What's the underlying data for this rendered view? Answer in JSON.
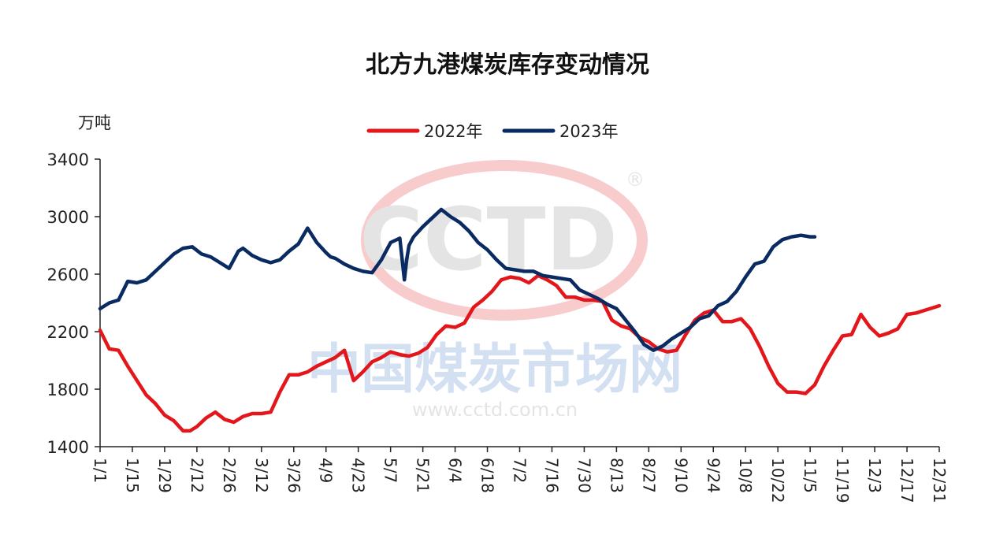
{
  "chart_data": {
    "type": "line",
    "title": "北方九港煤炭库存变动情况",
    "ylabel": "万吨",
    "ylim": [
      1400,
      3400
    ],
    "yticks": [
      1400,
      1800,
      2200,
      2600,
      3000,
      3400
    ],
    "x_tick_labels": [
      "1/1",
      "1/15",
      "1/29",
      "2/12",
      "2/26",
      "3/12",
      "3/26",
      "4/9",
      "4/23",
      "5/7",
      "5/21",
      "6/4",
      "6/18",
      "7/2",
      "7/16",
      "7/30",
      "8/13",
      "8/27",
      "9/10",
      "9/24",
      "10/8",
      "10/22",
      "11/5",
      "11/19",
      "12/3",
      "12/17",
      "12/31"
    ],
    "x_unit": "day of year",
    "legend_position": "top",
    "grid": false,
    "series": [
      {
        "name": "2022年",
        "color": "#e3161b",
        "x": [
          1,
          5,
          9,
          13,
          17,
          21,
          25,
          29,
          33,
          37,
          40,
          43,
          47,
          51,
          55,
          59,
          63,
          67,
          71,
          75,
          79,
          83,
          87,
          91,
          95,
          99,
          103,
          107,
          111,
          115,
          119,
          123,
          127,
          131,
          135,
          139,
          143,
          147,
          151,
          155,
          159,
          163,
          167,
          171,
          175,
          179,
          183,
          187,
          191,
          195,
          199,
          203,
          207,
          211,
          215,
          219,
          223,
          227,
          231,
          235,
          239,
          243,
          247,
          251,
          255,
          259,
          263,
          267,
          271,
          275,
          279,
          283,
          287,
          291,
          295,
          299,
          303,
          307,
          311,
          315,
          319,
          323,
          327,
          331,
          335,
          339,
          343,
          347,
          351,
          355,
          359,
          363,
          365
        ],
        "y": [
          2210,
          2080,
          2070,
          1960,
          1860,
          1760,
          1700,
          1620,
          1580,
          1510,
          1510,
          1540,
          1600,
          1640,
          1590,
          1570,
          1610,
          1630,
          1630,
          1640,
          1780,
          1900,
          1900,
          1920,
          1960,
          1990,
          2020,
          2070,
          1860,
          1920,
          1990,
          2020,
          2060,
          2040,
          2030,
          2050,
          2090,
          2180,
          2240,
          2230,
          2260,
          2370,
          2420,
          2480,
          2560,
          2580,
          2570,
          2540,
          2590,
          2560,
          2520,
          2440,
          2440,
          2420,
          2420,
          2410,
          2280,
          2240,
          2220,
          2160,
          2130,
          2080,
          2060,
          2070,
          2180,
          2280,
          2330,
          2350,
          2270,
          2270,
          2290,
          2220,
          2100,
          1960,
          1840,
          1780,
          1780,
          1770,
          1830,
          1960,
          2070,
          2170,
          2180,
          2320,
          2230,
          2170,
          2190,
          2220,
          2320,
          2330,
          2350,
          2370,
          2380
        ]
      },
      {
        "name": "2023年",
        "color": "#0a2a62",
        "x": [
          1,
          5,
          9,
          13,
          17,
          21,
          25,
          29,
          33,
          37,
          41,
          45,
          49,
          53,
          57,
          61,
          63,
          67,
          71,
          75,
          79,
          83,
          87,
          91,
          95,
          99,
          101,
          103,
          107,
          111,
          115,
          119,
          123,
          127,
          131,
          133,
          134,
          135,
          137,
          141,
          145,
          149,
          153,
          157,
          161,
          165,
          169,
          173,
          177,
          181,
          185,
          189,
          193,
          197,
          201,
          205,
          209,
          213,
          217,
          221,
          225,
          229,
          233,
          237,
          241,
          245,
          249,
          253,
          257,
          261,
          265,
          269,
          273,
          277,
          281,
          285,
          289,
          293,
          297,
          301,
          305,
          309,
          311
        ],
        "y": [
          2360,
          2400,
          2420,
          2550,
          2540,
          2560,
          2620,
          2680,
          2740,
          2780,
          2790,
          2740,
          2720,
          2680,
          2640,
          2760,
          2780,
          2730,
          2700,
          2680,
          2700,
          2760,
          2810,
          2920,
          2820,
          2750,
          2720,
          2710,
          2670,
          2640,
          2620,
          2610,
          2700,
          2820,
          2850,
          2560,
          2700,
          2800,
          2860,
          2930,
          2990,
          3050,
          3000,
          2960,
          2900,
          2820,
          2770,
          2700,
          2640,
          2630,
          2620,
          2620,
          2590,
          2580,
          2570,
          2560,
          2490,
          2460,
          2430,
          2390,
          2360,
          2280,
          2200,
          2110,
          2070,
          2100,
          2150,
          2190,
          2230,
          2290,
          2310,
          2380,
          2410,
          2480,
          2580,
          2670,
          2690,
          2790,
          2840,
          2860,
          2870,
          2860,
          2860
        ]
      }
    ]
  },
  "watermark": {
    "logo": "CCTD",
    "registered": "®",
    "name": "中国煤炭市场网",
    "url": "www.cctd.com.cn"
  }
}
